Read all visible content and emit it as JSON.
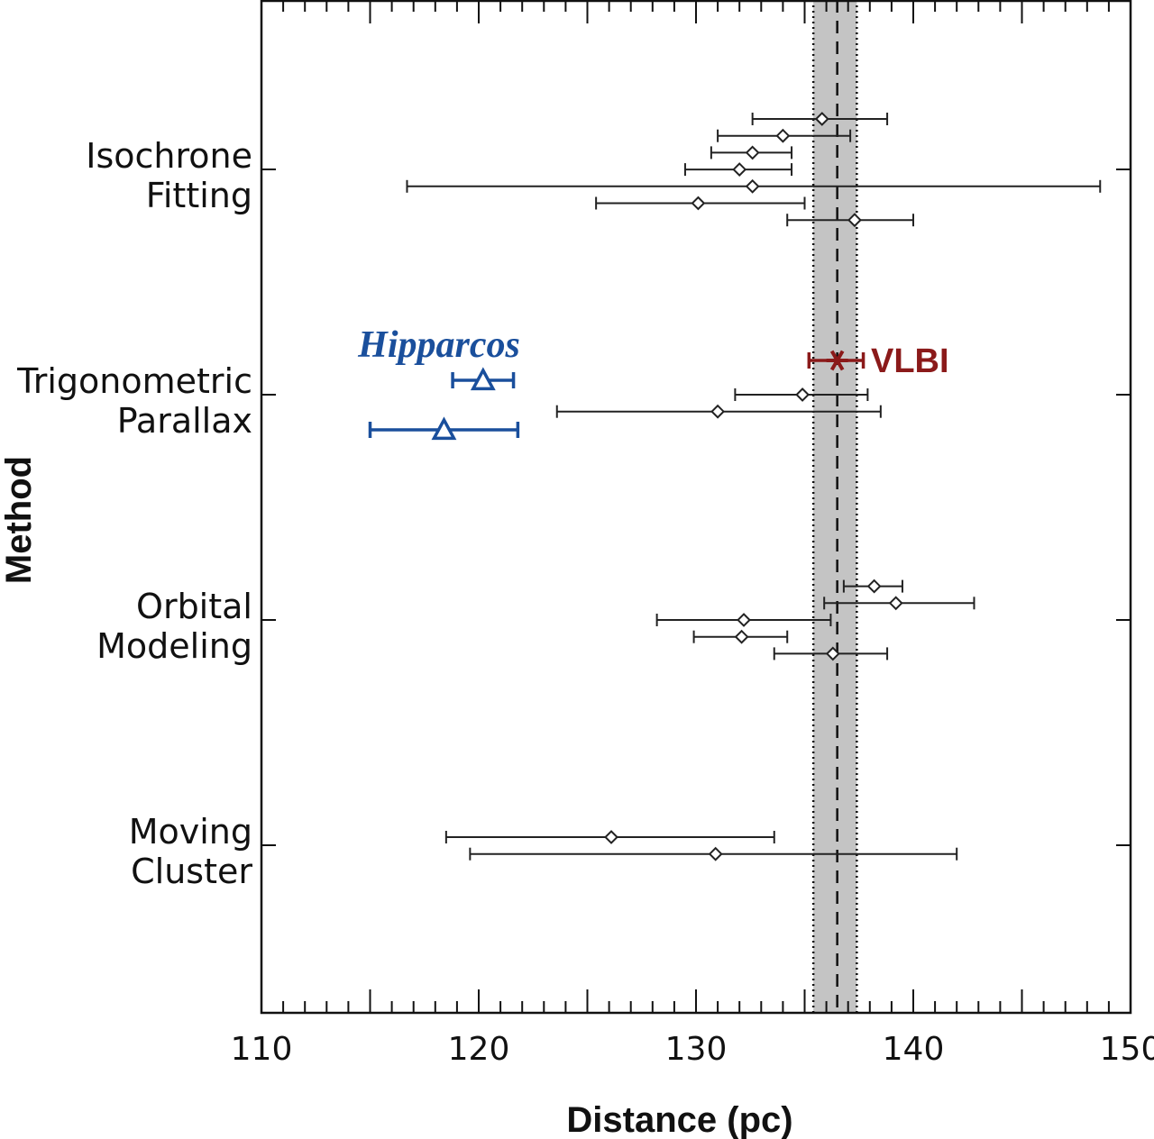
{
  "chart_data": {
    "type": "scatter",
    "title": "",
    "xlabel": "Distance (pc)",
    "ylabel": "Method",
    "xlim": [
      110,
      150
    ],
    "xticks": [
      "110",
      "120",
      "130",
      "140",
      "150"
    ],
    "grid": false,
    "categories": [
      {
        "label_lines": [
          "Isochrone",
          "Fitting"
        ]
      },
      {
        "label_lines": [
          "Trigonometric",
          "Parallax"
        ]
      },
      {
        "label_lines": [
          "Orbital",
          "Modeling"
        ]
      },
      {
        "label_lines": [
          "Moving",
          "Cluster"
        ]
      }
    ],
    "reference": {
      "value": 136.5,
      "band": [
        135.4,
        137.4
      ]
    },
    "series": [
      {
        "marker": "diamond",
        "color": "#222222",
        "points": [
          {
            "category": 0,
            "x": 135.8,
            "xerr": [
              132.6,
              138.8
            ]
          },
          {
            "category": 0,
            "x": 134.0,
            "xerr": [
              131.0,
              137.1
            ]
          },
          {
            "category": 0,
            "x": 132.6,
            "xerr": [
              130.7,
              134.4
            ]
          },
          {
            "category": 0,
            "x": 132.0,
            "xerr": [
              129.5,
              134.4
            ]
          },
          {
            "category": 0,
            "x": 132.6,
            "xerr": [
              116.7,
              148.6
            ]
          },
          {
            "category": 0,
            "x": 130.1,
            "xerr": [
              125.4,
              135.0
            ]
          },
          {
            "category": 0,
            "x": 137.3,
            "xerr": [
              134.2,
              140.0
            ]
          },
          {
            "category": 1,
            "x": 134.9,
            "xerr": [
              131.8,
              137.9
            ]
          },
          {
            "category": 1,
            "x": 131.0,
            "xerr": [
              123.6,
              138.5
            ]
          },
          {
            "category": 2,
            "x": 138.2,
            "xerr": [
              136.8,
              139.5
            ]
          },
          {
            "category": 2,
            "x": 139.2,
            "xerr": [
              135.9,
              142.8
            ]
          },
          {
            "category": 2,
            "x": 132.2,
            "xerr": [
              128.2,
              136.2
            ]
          },
          {
            "category": 2,
            "x": 132.1,
            "xerr": [
              129.9,
              134.2
            ]
          },
          {
            "category": 2,
            "x": 136.3,
            "xerr": [
              133.6,
              138.8
            ]
          },
          {
            "category": 3,
            "x": 126.1,
            "xerr": [
              118.5,
              133.6
            ]
          },
          {
            "category": 3,
            "x": 130.9,
            "xerr": [
              119.6,
              142.0
            ]
          }
        ]
      },
      {
        "name": "Hipparcos",
        "marker": "triangle",
        "color": "#1a4f9c",
        "points": [
          {
            "category": 1,
            "x": 120.2,
            "xerr": [
              118.8,
              121.6
            ]
          },
          {
            "category": 1,
            "x": 118.4,
            "xerr": [
              115.0,
              121.8
            ]
          }
        ]
      },
      {
        "name": "VLBI",
        "marker": "star",
        "color": "#8b1a1a",
        "points": [
          {
            "category": 1,
            "x": 136.5,
            "xerr": [
              135.2,
              137.7
            ]
          }
        ]
      }
    ]
  }
}
